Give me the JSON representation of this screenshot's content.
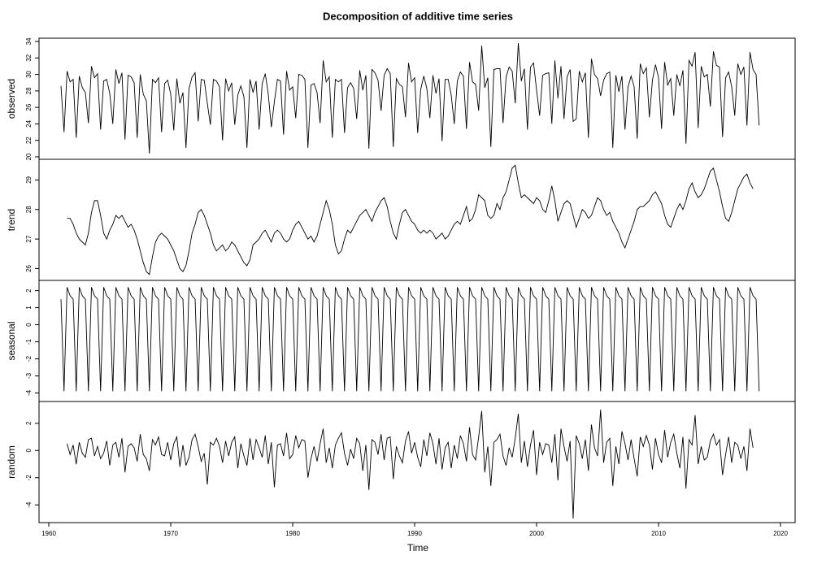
{
  "chart_data": {
    "type": "line",
    "title": "Decomposition of additive time series",
    "xlabel": "Time",
    "xlim": [
      1959.2,
      2021.2
    ],
    "xticks": [
      1960,
      1970,
      1980,
      1990,
      2000,
      2010,
      2020
    ],
    "x": [
      1961,
      1961.25,
      1961.5,
      1961.75,
      1962,
      1962.25,
      1962.5,
      1962.75,
      1963,
      1963.25,
      1963.5,
      1963.75,
      1964,
      1964.25,
      1964.5,
      1964.75,
      1965,
      1965.25,
      1965.5,
      1965.75,
      1966,
      1966.25,
      1966.5,
      1966.75,
      1967,
      1967.25,
      1967.5,
      1967.75,
      1968,
      1968.25,
      1968.5,
      1968.75,
      1969,
      1969.25,
      1969.5,
      1969.75,
      1970,
      1970.25,
      1970.5,
      1970.75,
      1971,
      1971.25,
      1971.5,
      1971.75,
      1972,
      1972.25,
      1972.5,
      1972.75,
      1973,
      1973.25,
      1973.5,
      1973.75,
      1974,
      1974.25,
      1974.5,
      1974.75,
      1975,
      1975.25,
      1975.5,
      1975.75,
      1976,
      1976.25,
      1976.5,
      1976.75,
      1977,
      1977.25,
      1977.5,
      1977.75,
      1978,
      1978.25,
      1978.5,
      1978.75,
      1979,
      1979.25,
      1979.5,
      1979.75,
      1980,
      1980.25,
      1980.5,
      1980.75,
      1981,
      1981.25,
      1981.5,
      1981.75,
      1982,
      1982.25,
      1982.5,
      1982.75,
      1983,
      1983.25,
      1983.5,
      1983.75,
      1984,
      1984.25,
      1984.5,
      1984.75,
      1985,
      1985.25,
      1985.5,
      1985.75,
      1986,
      1986.25,
      1986.5,
      1986.75,
      1987,
      1987.25,
      1987.5,
      1987.75,
      1988,
      1988.25,
      1988.5,
      1988.75,
      1989,
      1989.25,
      1989.5,
      1989.75,
      1990,
      1990.25,
      1990.5,
      1990.75,
      1991,
      1991.25,
      1991.5,
      1991.75,
      1992,
      1992.25,
      1992.5,
      1992.75,
      1993,
      1993.25,
      1993.5,
      1993.75,
      1994,
      1994.25,
      1994.5,
      1994.75,
      1995,
      1995.25,
      1995.5,
      1995.75,
      1996,
      1996.25,
      1996.5,
      1996.75,
      1997,
      1997.25,
      1997.5,
      1997.75,
      1998,
      1998.25,
      1998.5,
      1998.75,
      1999,
      1999.25,
      1999.5,
      1999.75,
      2000,
      2000.25,
      2000.5,
      2000.75,
      2001,
      2001.25,
      2001.5,
      2001.75,
      2002,
      2002.25,
      2002.5,
      2002.75,
      2003,
      2003.25,
      2003.5,
      2003.75,
      2004,
      2004.25,
      2004.5,
      2004.75,
      2005,
      2005.25,
      2005.5,
      2005.75,
      2006,
      2006.25,
      2006.5,
      2006.75,
      2007,
      2007.25,
      2007.5,
      2007.75,
      2008,
      2008.25,
      2008.5,
      2008.75,
      2009,
      2009.25,
      2009.5,
      2009.75,
      2010,
      2010.25,
      2010.5,
      2010.75,
      2011,
      2011.25,
      2011.5,
      2011.75,
      2012,
      2012.25,
      2012.5,
      2012.75,
      2013,
      2013.25,
      2013.5,
      2013.75,
      2014,
      2014.25,
      2014.5,
      2014.75,
      2015,
      2015.25,
      2015.5,
      2015.75,
      2016,
      2016.25,
      2016.5,
      2016.75,
      2017,
      2017.25,
      2017.5,
      2017.75,
      2018,
      2018.25
    ],
    "series": [
      {
        "name": "observed",
        "color": "#000000",
        "ylim": [
          19.7,
          34.4
        ],
        "yticks": [
          20,
          22,
          24,
          26,
          28,
          30,
          32,
          34
        ],
        "values": [
          28.6,
          23.0,
          30.4,
          29.1,
          29.4,
          22.3,
          29.8,
          28.4,
          27.8,
          24.1,
          31.0,
          29.6,
          30.1,
          23.3,
          29.2,
          29.4,
          27.7,
          24.0,
          30.6,
          28.9,
          30.2,
          22.1,
          29.9,
          29.7,
          29.0,
          22.3,
          30.0,
          27.6,
          26.8,
          20.4,
          29.4,
          29.0,
          29.6,
          23.0,
          28.9,
          29.3,
          27.6,
          23.2,
          29.5,
          26.5,
          27.8,
          21.1,
          28.3,
          29.7,
          30.2,
          24.3,
          29.4,
          29.3,
          26.5,
          23.9,
          29.4,
          29.2,
          28.5,
          22.0,
          29.5,
          28.0,
          29.0,
          23.9,
          27.5,
          28.6,
          27.3,
          21.1,
          29.4,
          27.8,
          29.2,
          23.3,
          28.9,
          30.1,
          27.6,
          23.6,
          26.7,
          29.4,
          29.2,
          22.7,
          30.4,
          28.1,
          28.5,
          24.7,
          30.0,
          29.9,
          29.4,
          21.1,
          28.7,
          28.9,
          27.8,
          24.1,
          31.7,
          29.1,
          29.7,
          22.3,
          29.4,
          29.1,
          29.4,
          22.9,
          28.4,
          29.0,
          28.3,
          24.6,
          30.5,
          28.1,
          29.9,
          21.0,
          30.6,
          30.2,
          29.3,
          25.6,
          29.9,
          30.7,
          30.1,
          21.2,
          29.5,
          28.8,
          28.5,
          24.8,
          31.4,
          29.1,
          29.6,
          22.9,
          28.2,
          29.8,
          28.3,
          24.7,
          29.9,
          27.7,
          29.5,
          21.9,
          29.4,
          29.4,
          27.5,
          24.0,
          29.2,
          30.3,
          29.8,
          23.4,
          31.5,
          29.1,
          28.8,
          25.6,
          33.5,
          28.4,
          29.6,
          21.2,
          30.6,
          30.7,
          30.7,
          24.1,
          29.7,
          30.9,
          30.4,
          26.5,
          33.8,
          29.2,
          30.7,
          23.3,
          30.9,
          31.4,
          28.1,
          25.0,
          29.9,
          30.1,
          30.2,
          24.0,
          31.7,
          27.1,
          31.0,
          24.6,
          29.7,
          30.6,
          24.3,
          24.6,
          30.4,
          29.1,
          30.2,
          22.3,
          31.9,
          30.0,
          29.5,
          27.4,
          29.3,
          30.1,
          30.3,
          21.1,
          29.9,
          27.9,
          29.8,
          23.3,
          28.5,
          29.8,
          28.5,
          22.2,
          31.3,
          30.1,
          30.8,
          24.8,
          29.3,
          31.2,
          29.6,
          23.4,
          31.5,
          28.7,
          29.5,
          25.0,
          30.0,
          28.6,
          30.5,
          21.6,
          31.7,
          31.0,
          32.7,
          23.5,
          31.0,
          29.7,
          30.0,
          26.1,
          32.8,
          31.1,
          30.9,
          22.4,
          29.6,
          30.3,
          28.5,
          25.0,
          31.3,
          30.0,
          30.9,
          23.8,
          32.7,
          30.6,
          30.0,
          23.8
        ]
      },
      {
        "name": "trend",
        "color": "#000000",
        "ylim": [
          25.6,
          29.7
        ],
        "yticks": [
          26,
          27,
          28,
          29
        ],
        "values": [
          null,
          null,
          27.7,
          27.7,
          27.5,
          27.2,
          27.0,
          26.9,
          26.8,
          27.2,
          27.9,
          28.3,
          28.3,
          27.8,
          27.2,
          27.0,
          27.3,
          27.5,
          27.8,
          27.7,
          27.8,
          27.6,
          27.4,
          27.5,
          27.3,
          27.0,
          26.6,
          26.2,
          25.9,
          25.8,
          26.4,
          26.9,
          27.1,
          27.2,
          27.1,
          27.0,
          26.8,
          26.6,
          26.3,
          26.0,
          25.9,
          26.1,
          26.6,
          27.2,
          27.5,
          27.9,
          28.0,
          27.8,
          27.5,
          27.2,
          26.8,
          26.6,
          26.7,
          26.8,
          26.6,
          26.7,
          26.9,
          26.8,
          26.6,
          26.4,
          26.2,
          26.1,
          26.3,
          26.8,
          26.9,
          27.0,
          27.2,
          27.3,
          27.1,
          26.9,
          27.2,
          27.3,
          27.2,
          27.0,
          26.9,
          27.0,
          27.3,
          27.5,
          27.6,
          27.4,
          27.2,
          27.0,
          27.1,
          26.9,
          27.1,
          27.5,
          27.9,
          28.3,
          28.0,
          27.5,
          26.8,
          26.5,
          26.6,
          27.0,
          27.3,
          27.2,
          27.4,
          27.6,
          27.8,
          27.9,
          28.0,
          27.8,
          27.6,
          27.9,
          28.1,
          28.3,
          28.4,
          28.1,
          27.6,
          27.2,
          27.0,
          27.5,
          27.9,
          28.0,
          27.8,
          27.6,
          27.5,
          27.3,
          27.2,
          27.3,
          27.2,
          27.3,
          27.2,
          27.0,
          27.1,
          27.2,
          27.0,
          27.1,
          27.3,
          27.5,
          27.6,
          27.5,
          27.8,
          28.1,
          27.6,
          27.7,
          28.0,
          28.5,
          28.4,
          28.3,
          27.8,
          27.7,
          27.8,
          28.2,
          28.0,
          28.4,
          28.6,
          29.0,
          29.4,
          29.5,
          28.9,
          28.4,
          28.5,
          28.4,
          28.3,
          28.2,
          28.4,
          28.3,
          28.0,
          27.9,
          28.3,
          28.8,
          28.3,
          27.6,
          27.9,
          28.2,
          28.3,
          28.2,
          27.8,
          27.4,
          27.7,
          28.0,
          27.9,
          27.7,
          27.8,
          28.1,
          28.4,
          28.3,
          28.0,
          27.8,
          27.9,
          27.6,
          27.4,
          27.2,
          26.9,
          26.7,
          27.0,
          27.3,
          27.6,
          28.0,
          28.1,
          28.1,
          28.2,
          28.3,
          28.5,
          28.6,
          28.4,
          28.2,
          27.8,
          27.5,
          27.4,
          27.7,
          28.0,
          28.2,
          28.0,
          28.3,
          28.7,
          28.9,
          28.6,
          28.4,
          28.5,
          28.7,
          29.0,
          29.3,
          29.4,
          29.0,
          28.6,
          28.1,
          27.7,
          27.6,
          27.9,
          28.3,
          28.7,
          28.9,
          29.1,
          29.2,
          28.9,
          28.7,
          null,
          null
        ]
      },
      {
        "name": "seasonal",
        "color": "#000000",
        "ylim": [
          -4.5,
          2.6
        ],
        "yticks": [
          -4,
          -3,
          -2,
          -1,
          0,
          1,
          2
        ],
        "values": [
          1.5,
          -3.9,
          2.2,
          1.7,
          1.5,
          -3.9,
          2.2,
          1.7,
          1.5,
          -3.9,
          2.2,
          1.7,
          1.5,
          -3.9,
          2.2,
          1.7,
          1.5,
          -3.9,
          2.2,
          1.7,
          1.5,
          -3.9,
          2.2,
          1.7,
          1.5,
          -3.9,
          2.2,
          1.7,
          1.5,
          -3.9,
          2.2,
          1.7,
          1.5,
          -3.9,
          2.2,
          1.7,
          1.5,
          -3.9,
          2.2,
          1.7,
          1.5,
          -3.9,
          2.2,
          1.7,
          1.5,
          -3.9,
          2.2,
          1.7,
          1.5,
          -3.9,
          2.2,
          1.7,
          1.5,
          -3.9,
          2.2,
          1.7,
          1.5,
          -3.9,
          2.2,
          1.7,
          1.5,
          -3.9,
          2.2,
          1.7,
          1.5,
          -3.9,
          2.2,
          1.7,
          1.5,
          -3.9,
          2.2,
          1.7,
          1.5,
          -3.9,
          2.2,
          1.7,
          1.5,
          -3.9,
          2.2,
          1.7,
          1.5,
          -3.9,
          2.2,
          1.7,
          1.5,
          -3.9,
          2.2,
          1.7,
          1.5,
          -3.9,
          2.2,
          1.7,
          1.5,
          -3.9,
          2.2,
          1.7,
          1.5,
          -3.9,
          2.2,
          1.7,
          1.5,
          -3.9,
          2.2,
          1.7,
          1.5,
          -3.9,
          2.2,
          1.7,
          1.5,
          -3.9,
          2.2,
          1.7,
          1.5,
          -3.9,
          2.2,
          1.7,
          1.5,
          -3.9,
          2.2,
          1.7,
          1.5,
          -3.9,
          2.2,
          1.7,
          1.5,
          -3.9,
          2.2,
          1.7,
          1.5,
          -3.9,
          2.2,
          1.7,
          1.5,
          -3.9,
          2.2,
          1.7,
          1.5,
          -3.9,
          2.2,
          1.7,
          1.5,
          -3.9,
          2.2,
          1.7,
          1.5,
          -3.9,
          2.2,
          1.7,
          1.5,
          -3.9,
          2.2,
          1.7,
          1.5,
          -3.9,
          2.2,
          1.7,
          1.5,
          -3.9,
          2.2,
          1.7,
          1.5,
          -3.9,
          2.2,
          1.7,
          1.5,
          -3.9,
          2.2,
          1.7,
          1.5,
          -3.9,
          2.2,
          1.7,
          1.5,
          -3.9,
          2.2,
          1.7,
          1.5,
          -3.9,
          2.2,
          1.7,
          1.5,
          -3.9,
          2.2,
          1.7,
          1.5,
          -3.9,
          2.2,
          1.7,
          1.5,
          -3.9,
          2.2,
          1.7,
          1.5,
          -3.9,
          2.2,
          1.7,
          1.5,
          -3.9,
          2.2,
          1.7,
          1.5,
          -3.9,
          2.2,
          1.7,
          1.5,
          -3.9,
          2.2,
          1.7,
          1.5,
          -3.9,
          2.2,
          1.7,
          1.5,
          -3.9,
          2.2,
          1.7,
          1.5,
          -3.9,
          2.2,
          1.7,
          1.5,
          -3.9,
          2.2,
          1.7,
          1.5,
          -3.9,
          2.2,
          1.7,
          1.5,
          -3.9
        ]
      },
      {
        "name": "random",
        "color": "#000000",
        "ylim": [
          -5.3,
          3.6
        ],
        "yticks": [
          -4,
          -2,
          0,
          2
        ],
        "values": [
          null,
          null,
          0.5,
          -0.3,
          0.4,
          -1.0,
          0.6,
          -0.2,
          -0.5,
          0.8,
          0.9,
          -0.4,
          0.3,
          -0.6,
          -0.2,
          0.7,
          -1.1,
          0.4,
          0.6,
          -0.5,
          0.9,
          -1.6,
          0.3,
          0.5,
          0.2,
          -0.8,
          1.2,
          -0.3,
          -0.6,
          -1.5,
          0.8,
          0.4,
          1.0,
          -0.3,
          -0.4,
          0.6,
          -0.7,
          0.5,
          1.0,
          -1.2,
          0.4,
          -1.1,
          -0.5,
          0.8,
          1.2,
          0.3,
          -0.8,
          -0.2,
          -2.5,
          0.6,
          0.4,
          0.9,
          0.3,
          -0.9,
          0.7,
          -0.4,
          0.6,
          1.0,
          -1.3,
          0.5,
          -0.4,
          -1.1,
          0.9,
          -0.7,
          0.8,
          0.2,
          -0.5,
          1.1,
          -1.0,
          0.6,
          -2.7,
          0.4,
          0.5,
          -0.4,
          1.3,
          -0.6,
          -0.3,
          1.1,
          0.2,
          0.8,
          0.7,
          -2.0,
          -0.6,
          0.3,
          -0.8,
          0.5,
          1.6,
          -0.9,
          0.2,
          -1.3,
          0.4,
          0.9,
          1.3,
          -0.2,
          -1.1,
          0.1,
          -0.6,
          0.9,
          0.5,
          -1.5,
          0.4,
          -2.9,
          0.8,
          0.6,
          -0.3,
          1.2,
          -0.7,
          0.9,
          1.0,
          -2.1,
          0.3,
          -0.4,
          -0.9,
          0.7,
          1.4,
          -0.2,
          0.6,
          -0.5,
          -1.2,
          0.8,
          -0.4,
          1.3,
          0.5,
          -1.0,
          0.9,
          -1.4,
          0.2,
          0.6,
          -1.3,
          0.4,
          -0.6,
          1.1,
          0.5,
          -0.8,
          1.7,
          -0.3,
          -0.7,
          1.0,
          2.9,
          -1.6,
          0.3,
          -2.6,
          0.6,
          0.8,
          1.2,
          -0.4,
          -1.1,
          0.2,
          -0.5,
          0.9,
          2.7,
          -0.9,
          0.7,
          -1.2,
          0.4,
          1.5,
          -1.8,
          0.6,
          -0.3,
          0.5,
          0.4,
          -0.9,
          1.2,
          -2.2,
          1.6,
          0.3,
          -0.8,
          0.7,
          -5.0,
          1.1,
          0.5,
          -0.6,
          0.8,
          -1.5,
          1.9,
          0.2,
          -0.4,
          3.0,
          -0.9,
          0.6,
          0.9,
          -2.6,
          0.3,
          -1.0,
          1.4,
          0.5,
          -0.7,
          0.8,
          -0.6,
          -1.9,
          1.0,
          0.3,
          1.1,
          0.4,
          -1.4,
          0.9,
          -0.3,
          -0.9,
          1.5,
          -0.5,
          0.6,
          1.2,
          -0.2,
          -1.3,
          1.0,
          -2.8,
          0.8,
          0.4,
          2.6,
          -1.0,
          0.3,
          -0.7,
          -0.5,
          0.7,
          1.2,
          0.4,
          0.8,
          -1.8,
          -0.3,
          1.0,
          -0.9,
          0.6,
          0.4,
          -0.6,
          0.3,
          -1.5,
          1.6,
          0.2,
          null,
          null
        ]
      }
    ]
  }
}
